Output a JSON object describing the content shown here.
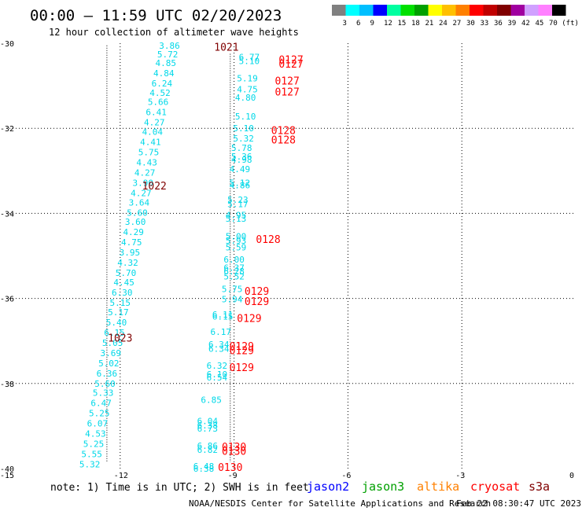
{
  "header": {
    "title": "00:00 – 11:59 UTC 02/20/2023",
    "subtitle": "12 hour collection of altimeter wave heights"
  },
  "legend": {
    "colors": [
      "#808080",
      "#00ffff",
      "#00bfff",
      "#0000ff",
      "#00ffa0",
      "#00e000",
      "#00a000",
      "#ffff00",
      "#ffc000",
      "#ff8000",
      "#ff0000",
      "#c00000",
      "#800000",
      "#a000a0",
      "#d0a0ff",
      "#ff80ff",
      "#000000"
    ],
    "labels": [
      "3",
      "6",
      "9",
      "12",
      "15",
      "18",
      "21",
      "24",
      "27",
      "30",
      "33",
      "36",
      "39",
      "42",
      "45",
      "70 (ft)"
    ]
  },
  "chart_data": {
    "type": "scatter",
    "xlim": [
      -15,
      0
    ],
    "ylim": [
      -40,
      -30
    ],
    "xticks": [
      "-15",
      "-12",
      "-9",
      "-6",
      "-3",
      "0"
    ],
    "yticks": [
      "-30",
      "-32",
      "-34",
      "-36",
      "-38",
      "-40"
    ],
    "grid": true,
    "tracks": [
      {
        "x": -12.35,
        "y0": -30.05,
        "y1": -39.85
      },
      {
        "x": -9.1,
        "y0": -30.25,
        "y1": -39.85
      }
    ],
    "wave_labels": [
      {
        "x": -10.7,
        "y": -30.06,
        "v": "3.86"
      },
      {
        "x": -10.75,
        "y": -30.26,
        "v": "5.72"
      },
      {
        "x": -10.8,
        "y": -30.46,
        "v": "4.85"
      },
      {
        "x": -10.85,
        "y": -30.7,
        "v": "4.84"
      },
      {
        "x": -10.9,
        "y": -30.94,
        "v": "6.24"
      },
      {
        "x": -10.95,
        "y": -31.16,
        "v": "4.52"
      },
      {
        "x": -11.0,
        "y": -31.38,
        "v": "5.66"
      },
      {
        "x": -11.05,
        "y": -31.62,
        "v": "6.41"
      },
      {
        "x": -11.1,
        "y": -31.86,
        "v": "4.27"
      },
      {
        "x": -11.15,
        "y": -32.08,
        "v": "4.04"
      },
      {
        "x": -11.2,
        "y": -32.32,
        "v": "4.41"
      },
      {
        "x": -11.25,
        "y": -32.56,
        "v": "5.75"
      },
      {
        "x": -11.3,
        "y": -32.8,
        "v": "4.43"
      },
      {
        "x": -11.35,
        "y": -33.04,
        "v": "4.27"
      },
      {
        "x": -11.4,
        "y": -33.28,
        "v": "3.90"
      },
      {
        "x": -11.45,
        "y": -33.52,
        "v": "4.27"
      },
      {
        "x": -11.5,
        "y": -33.74,
        "v": "3.64"
      },
      {
        "x": -11.55,
        "y": -33.98,
        "v": "5.60"
      },
      {
        "x": -11.6,
        "y": -34.2,
        "v": "3.60"
      },
      {
        "x": -11.65,
        "y": -34.44,
        "v": "4.29"
      },
      {
        "x": -11.7,
        "y": -34.68,
        "v": "4.75"
      },
      {
        "x": -11.75,
        "y": -34.92,
        "v": "3.95"
      },
      {
        "x": -11.8,
        "y": -35.16,
        "v": "4.32"
      },
      {
        "x": -11.85,
        "y": -35.4,
        "v": "5.70"
      },
      {
        "x": -11.9,
        "y": -35.62,
        "v": "4.45"
      },
      {
        "x": -11.95,
        "y": -35.86,
        "v": "6.30"
      },
      {
        "x": -12.0,
        "y": -36.1,
        "v": "5.15"
      },
      {
        "x": -12.05,
        "y": -36.32,
        "v": "5.17"
      },
      {
        "x": -12.1,
        "y": -36.56,
        "v": "5.40"
      },
      {
        "x": -12.15,
        "y": -36.8,
        "v": "6.15"
      },
      {
        "x": -12.2,
        "y": -37.04,
        "v": "5.05"
      },
      {
        "x": -12.25,
        "y": -37.28,
        "v": "3.69"
      },
      {
        "x": -12.3,
        "y": -37.52,
        "v": "5.02"
      },
      {
        "x": -12.35,
        "y": -37.76,
        "v": "6.36"
      },
      {
        "x": -12.4,
        "y": -38.0,
        "v": "5.60"
      },
      {
        "x": -12.45,
        "y": -38.22,
        "v": "5.33"
      },
      {
        "x": -12.5,
        "y": -38.46,
        "v": "6.47"
      },
      {
        "x": -12.55,
        "y": -38.7,
        "v": "5.25"
      },
      {
        "x": -12.6,
        "y": -38.94,
        "v": "6.07"
      },
      {
        "x": -12.65,
        "y": -39.18,
        "v": "4.53"
      },
      {
        "x": -12.7,
        "y": -39.42,
        "v": "5.25"
      },
      {
        "x": -12.75,
        "y": -39.66,
        "v": "5.55"
      },
      {
        "x": -12.8,
        "y": -39.9,
        "v": "5.32"
      },
      {
        "x": -8.6,
        "y": -30.32,
        "v": "6.77"
      },
      {
        "x": -8.6,
        "y": -30.42,
        "v": "5.10"
      },
      {
        "x": -8.65,
        "y": -30.82,
        "v": "5.19"
      },
      {
        "x": -8.65,
        "y": -31.08,
        "v": "4.75"
      },
      {
        "x": -8.7,
        "y": -31.28,
        "v": "4.80"
      },
      {
        "x": -8.7,
        "y": -31.72,
        "v": "5.10"
      },
      {
        "x": -8.75,
        "y": -32.0,
        "v": "5.10"
      },
      {
        "x": -8.75,
        "y": -32.24,
        "v": "5.32"
      },
      {
        "x": -8.8,
        "y": -32.46,
        "v": "5.78"
      },
      {
        "x": -8.8,
        "y": -32.66,
        "v": "5.36"
      },
      {
        "x": -8.8,
        "y": -32.74,
        "v": "4.98"
      },
      {
        "x": -8.85,
        "y": -32.96,
        "v": "4.49"
      },
      {
        "x": -8.85,
        "y": -33.28,
        "v": "5.12"
      },
      {
        "x": -8.85,
        "y": -33.34,
        "v": "4.86"
      },
      {
        "x": -8.9,
        "y": -33.68,
        "v": "5.23"
      },
      {
        "x": -8.9,
        "y": -33.78,
        "v": "5.17"
      },
      {
        "x": -8.95,
        "y": -34.04,
        "v": "4.95"
      },
      {
        "x": -8.95,
        "y": -34.12,
        "v": "5.13"
      },
      {
        "x": -8.95,
        "y": -34.54,
        "v": "5.00"
      },
      {
        "x": -8.95,
        "y": -34.64,
        "v": "5.93"
      },
      {
        "x": -8.95,
        "y": -34.8,
        "v": "5.59"
      },
      {
        "x": -9.0,
        "y": -35.08,
        "v": "6.00"
      },
      {
        "x": -9.0,
        "y": -35.28,
        "v": "6.37"
      },
      {
        "x": -9.0,
        "y": -35.36,
        "v": "6.28"
      },
      {
        "x": -9.0,
        "y": -35.48,
        "v": "5.52"
      },
      {
        "x": -9.05,
        "y": -35.78,
        "v": "5.75"
      },
      {
        "x": -9.05,
        "y": -36.02,
        "v": "5.94"
      },
      {
        "x": -9.3,
        "y": -36.38,
        "v": "6.11"
      },
      {
        "x": -9.3,
        "y": -36.42,
        "v": "6.15"
      },
      {
        "x": -9.35,
        "y": -36.78,
        "v": "6.17"
      },
      {
        "x": -9.4,
        "y": -37.08,
        "v": "6.34"
      },
      {
        "x": -9.4,
        "y": -37.18,
        "v": "6.34"
      },
      {
        "x": -9.45,
        "y": -37.58,
        "v": "6.32"
      },
      {
        "x": -9.45,
        "y": -37.78,
        "v": "6.10"
      },
      {
        "x": -9.45,
        "y": -37.86,
        "v": "6.54"
      },
      {
        "x": -9.6,
        "y": -38.38,
        "v": "6.85"
      },
      {
        "x": -9.7,
        "y": -38.88,
        "v": "6.04"
      },
      {
        "x": -9.7,
        "y": -38.98,
        "v": "6.38"
      },
      {
        "x": -9.7,
        "y": -39.06,
        "v": "6.73"
      },
      {
        "x": -9.7,
        "y": -39.46,
        "v": "6.86"
      },
      {
        "x": -9.7,
        "y": -39.56,
        "v": "6.82"
      },
      {
        "x": -9.8,
        "y": -39.94,
        "v": "6.48"
      },
      {
        "x": -9.8,
        "y": -40.0,
        "v": "6.38"
      }
    ],
    "time_labels": [
      {
        "x": -9.2,
        "y": -30.08,
        "v": "1021",
        "c": "#800000"
      },
      {
        "x": -11.1,
        "y": -33.35,
        "v": "1022",
        "c": "#800000"
      },
      {
        "x": -12.0,
        "y": -36.92,
        "v": "1023",
        "c": "#800000"
      },
      {
        "x": -7.5,
        "y": -30.38,
        "v": "0127",
        "c": "#ff0000"
      },
      {
        "x": -7.5,
        "y": -30.48,
        "v": "0127",
        "c": "#ff0000"
      },
      {
        "x": -7.6,
        "y": -30.88,
        "v": "0127",
        "c": "#ff0000"
      },
      {
        "x": -7.6,
        "y": -31.14,
        "v": "0127",
        "c": "#ff0000"
      },
      {
        "x": -7.7,
        "y": -32.04,
        "v": "0128",
        "c": "#ff0000"
      },
      {
        "x": -7.7,
        "y": -32.26,
        "v": "0128",
        "c": "#ff0000"
      },
      {
        "x": -8.1,
        "y": -34.6,
        "v": "0128",
        "c": "#ff0000"
      },
      {
        "x": -8.4,
        "y": -35.82,
        "v": "0129",
        "c": "#ff0000"
      },
      {
        "x": -8.4,
        "y": -36.06,
        "v": "0129",
        "c": "#ff0000"
      },
      {
        "x": -8.6,
        "y": -36.46,
        "v": "0129",
        "c": "#ff0000"
      },
      {
        "x": -8.8,
        "y": -37.12,
        "v": "0129",
        "c": "#ff0000"
      },
      {
        "x": -8.8,
        "y": -37.22,
        "v": "0129",
        "c": "#ff0000"
      },
      {
        "x": -8.8,
        "y": -37.62,
        "v": "0129",
        "c": "#ff0000"
      },
      {
        "x": -9.0,
        "y": -39.48,
        "v": "0130",
        "c": "#ff0000"
      },
      {
        "x": -9.0,
        "y": -39.58,
        "v": "0130",
        "c": "#ff0000"
      },
      {
        "x": -9.1,
        "y": -39.96,
        "v": "0130",
        "c": "#ff0000"
      }
    ],
    "wave_color": "#00d8e8"
  },
  "note": "note: 1) Time is in UTC; 2) SWH is in feet",
  "satellites": [
    {
      "name": "jason2",
      "color": "#0000ff"
    },
    {
      "name": "jason3",
      "color": "#00a000"
    },
    {
      "name": "altika",
      "color": "#ff8000"
    },
    {
      "name": "cryosat",
      "color": "#ff0000"
    },
    {
      "name": "s3a",
      "color": "#800000"
    }
  ],
  "footer": {
    "left": "NOAA/NESDIS Center for Satellite Applications and Research",
    "right": "Feb 22 08:30:47 UTC 2023"
  }
}
